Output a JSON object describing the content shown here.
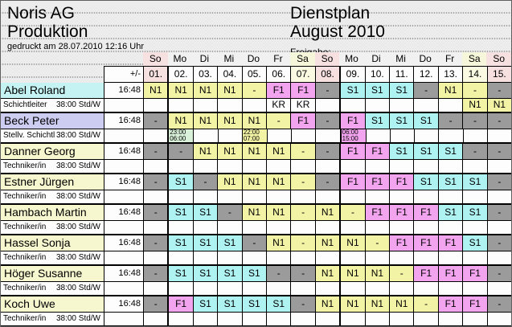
{
  "header": {
    "company_line1": "Noris AG",
    "company_line2": "Produktion",
    "printed": "gedruckt am 28.07.2010  12:16 Uhr",
    "plan_title": "Dienstplan",
    "plan_month": "August 2010",
    "release_label": "Freigabe:"
  },
  "legend": {
    "colors": {
      "n1": "#f3f3a6",
      "f1": "#f3a4ef",
      "s1": "#aff2f2",
      "off": "#9b9b9b",
      "kr": "#ffffff",
      "green": "#d9f1d9"
    }
  },
  "table": {
    "adjust_header": "+/-",
    "days": [
      {
        "weekday": "So",
        "date": "01.",
        "kind": "sun",
        "week_start": false
      },
      {
        "weekday": "Mo",
        "date": "02.",
        "kind": "wd",
        "week_start": true
      },
      {
        "weekday": "Di",
        "date": "03.",
        "kind": "wd",
        "week_start": false
      },
      {
        "weekday": "Mi",
        "date": "04.",
        "kind": "wd",
        "week_start": false
      },
      {
        "weekday": "Do",
        "date": "05.",
        "kind": "wd",
        "week_start": false
      },
      {
        "weekday": "Fr",
        "date": "06.",
        "kind": "wd",
        "week_start": false
      },
      {
        "weekday": "Sa",
        "date": "07.",
        "kind": "sat",
        "week_start": false
      },
      {
        "weekday": "So",
        "date": "08.",
        "kind": "sun",
        "week_start": false
      },
      {
        "weekday": "Mo",
        "date": "09.",
        "kind": "wd",
        "week_start": true
      },
      {
        "weekday": "Di",
        "date": "10.",
        "kind": "wd",
        "week_start": false
      },
      {
        "weekday": "Mi",
        "date": "11.",
        "kind": "wd",
        "week_start": false
      },
      {
        "weekday": "Do",
        "date": "12.",
        "kind": "wd",
        "week_start": false
      },
      {
        "weekday": "Fr",
        "date": "13.",
        "kind": "wd",
        "week_start": false
      },
      {
        "weekday": "Sa",
        "date": "14.",
        "kind": "sat",
        "week_start": false
      },
      {
        "weekday": "So",
        "date": "15.",
        "kind": "sun",
        "week_start": false
      }
    ],
    "employees": [
      {
        "name": "Abel Roland",
        "role": "Schichtleiter",
        "hours": "38:00 Std/W",
        "balance": "16:48",
        "name_bg": "#c5f3f3",
        "cells": [
          {
            "code": "N1",
            "bg": "n1"
          },
          {
            "code": "N1",
            "bg": "n1"
          },
          {
            "code": "N1",
            "bg": "n1"
          },
          {
            "code": "N1",
            "bg": "n1"
          },
          {
            "code": "-",
            "bg": "n1"
          },
          {
            "code": "F1",
            "bg": "f1"
          },
          {
            "code": "F1",
            "bg": "f1"
          },
          {
            "code": "-",
            "bg": "off"
          },
          {
            "code": "S1",
            "bg": "s1"
          },
          {
            "code": "S1",
            "bg": "s1"
          },
          {
            "code": "S1",
            "bg": "s1"
          },
          {
            "code": "-",
            "bg": "off"
          },
          {
            "code": "N1",
            "bg": "n1"
          },
          {
            "code": "-",
            "bg": "n1"
          },
          {
            "code": "-",
            "bg": "off"
          }
        ],
        "subs": [
          null,
          null,
          null,
          null,
          null,
          {
            "code": "KR",
            "bg": "kr"
          },
          {
            "code": "KR",
            "bg": "kr"
          },
          null,
          null,
          null,
          null,
          null,
          null,
          {
            "code": "N1",
            "bg": "n1"
          },
          {
            "code": "N1",
            "bg": "n1"
          }
        ]
      },
      {
        "name": "Beck Peter",
        "role": "Stellv. Schichtl",
        "hours": "38:00 Std/W",
        "balance": "16:48",
        "name_bg": "#cdccf1",
        "cells": [
          {
            "code": "-",
            "bg": "off"
          },
          {
            "code": "N1",
            "bg": "n1"
          },
          {
            "code": "N1",
            "bg": "n1"
          },
          {
            "code": "N1",
            "bg": "n1"
          },
          {
            "code": "N1",
            "bg": "n1"
          },
          {
            "code": "-",
            "bg": "n1"
          },
          {
            "code": "F1",
            "bg": "f1"
          },
          {
            "code": "-",
            "bg": "off"
          },
          {
            "code": "F1",
            "bg": "f1"
          },
          {
            "code": "S1",
            "bg": "s1"
          },
          {
            "code": "S1",
            "bg": "s1"
          },
          {
            "code": "S1",
            "bg": "s1"
          },
          {
            "code": "-",
            "bg": "off"
          },
          {
            "code": "-",
            "bg": "off"
          },
          {
            "code": "-",
            "bg": "off"
          }
        ],
        "subs": [
          null,
          {
            "code": "23:00\n06:00",
            "bg": "green",
            "small": true
          },
          null,
          null,
          {
            "code": "22:00\n07:00",
            "bg": "n1",
            "small": true
          },
          null,
          null,
          null,
          {
            "code": "06:00\n15:00",
            "bg": "f1",
            "small": true
          },
          null,
          null,
          null,
          null,
          null,
          null
        ]
      },
      {
        "name": "Danner Georg",
        "role": "Techniker/in",
        "hours": "38:00 Std/W",
        "balance": "16:48",
        "name_bg": "#f6f6cf",
        "cells": [
          {
            "code": "-",
            "bg": "off"
          },
          {
            "code": "-",
            "bg": "off"
          },
          {
            "code": "N1",
            "bg": "n1"
          },
          {
            "code": "N1",
            "bg": "n1"
          },
          {
            "code": "N1",
            "bg": "n1"
          },
          {
            "code": "N1",
            "bg": "n1"
          },
          {
            "code": "-",
            "bg": "n1"
          },
          {
            "code": "-",
            "bg": "off"
          },
          {
            "code": "F1",
            "bg": "f1"
          },
          {
            "code": "F1",
            "bg": "f1"
          },
          {
            "code": "S1",
            "bg": "s1"
          },
          {
            "code": "S1",
            "bg": "s1"
          },
          {
            "code": "S1",
            "bg": "s1"
          },
          {
            "code": "-",
            "bg": "off"
          },
          {
            "code": "-",
            "bg": "off"
          }
        ],
        "subs": [
          null,
          null,
          null,
          null,
          null,
          null,
          null,
          null,
          null,
          null,
          null,
          null,
          null,
          null,
          null
        ]
      },
      {
        "name": "Estner Jürgen",
        "role": "Techniker/in",
        "hours": "38:00 Std/W",
        "balance": "16:48",
        "name_bg": "#f6f6cf",
        "cells": [
          {
            "code": "-",
            "bg": "off"
          },
          {
            "code": "S1",
            "bg": "s1"
          },
          {
            "code": "-",
            "bg": "off"
          },
          {
            "code": "N1",
            "bg": "n1"
          },
          {
            "code": "N1",
            "bg": "n1"
          },
          {
            "code": "N1",
            "bg": "n1"
          },
          {
            "code": "-",
            "bg": "n1"
          },
          {
            "code": "-",
            "bg": "off"
          },
          {
            "code": "F1",
            "bg": "f1"
          },
          {
            "code": "F1",
            "bg": "f1"
          },
          {
            "code": "F1",
            "bg": "f1"
          },
          {
            "code": "S1",
            "bg": "s1"
          },
          {
            "code": "S1",
            "bg": "s1"
          },
          {
            "code": "S1",
            "bg": "s1"
          },
          {
            "code": "-",
            "bg": "off"
          }
        ],
        "subs": [
          null,
          null,
          null,
          null,
          null,
          null,
          null,
          null,
          null,
          null,
          null,
          null,
          null,
          null,
          null
        ]
      },
      {
        "name": "Hambach Martin",
        "role": "Techniker/in",
        "hours": "38:00 Std/W",
        "balance": "16:48",
        "name_bg": "#f6f6cf",
        "cells": [
          {
            "code": "-",
            "bg": "off"
          },
          {
            "code": "S1",
            "bg": "s1"
          },
          {
            "code": "S1",
            "bg": "s1"
          },
          {
            "code": "-",
            "bg": "off"
          },
          {
            "code": "N1",
            "bg": "n1"
          },
          {
            "code": "N1",
            "bg": "n1"
          },
          {
            "code": "-",
            "bg": "n1"
          },
          {
            "code": "N1",
            "bg": "n1"
          },
          {
            "code": "-",
            "bg": "n1"
          },
          {
            "code": "F1",
            "bg": "f1"
          },
          {
            "code": "F1",
            "bg": "f1"
          },
          {
            "code": "F1",
            "bg": "f1"
          },
          {
            "code": "S1",
            "bg": "s1"
          },
          {
            "code": "S1",
            "bg": "s1"
          },
          {
            "code": "-",
            "bg": "off"
          }
        ],
        "subs": [
          null,
          null,
          null,
          null,
          null,
          null,
          null,
          null,
          null,
          null,
          null,
          null,
          null,
          null,
          null
        ]
      },
      {
        "name": "Hassel Sonja",
        "role": "Techniker/in",
        "hours": "38:00 Std/W",
        "balance": "16:48",
        "name_bg": "#f6f6cf",
        "cells": [
          {
            "code": "-",
            "bg": "off"
          },
          {
            "code": "S1",
            "bg": "s1"
          },
          {
            "code": "S1",
            "bg": "s1"
          },
          {
            "code": "S1",
            "bg": "s1"
          },
          {
            "code": "-",
            "bg": "off"
          },
          {
            "code": "N1",
            "bg": "n1"
          },
          {
            "code": "-",
            "bg": "n1"
          },
          {
            "code": "N1",
            "bg": "n1"
          },
          {
            "code": "N1",
            "bg": "n1"
          },
          {
            "code": "-",
            "bg": "n1"
          },
          {
            "code": "F1",
            "bg": "f1"
          },
          {
            "code": "F1",
            "bg": "f1"
          },
          {
            "code": "F1",
            "bg": "f1"
          },
          {
            "code": "S1",
            "bg": "s1"
          },
          {
            "code": "-",
            "bg": "off"
          }
        ],
        "subs": [
          null,
          null,
          null,
          null,
          null,
          null,
          null,
          null,
          null,
          null,
          null,
          null,
          null,
          null,
          null
        ]
      },
      {
        "name": "Höger Susanne",
        "role": "Techniker/in",
        "hours": "38:00 Std/W",
        "balance": "16:48",
        "name_bg": "#f6f6cf",
        "cells": [
          {
            "code": "-",
            "bg": "off"
          },
          {
            "code": "S1",
            "bg": "s1"
          },
          {
            "code": "S1",
            "bg": "s1"
          },
          {
            "code": "S1",
            "bg": "s1"
          },
          {
            "code": "S1",
            "bg": "s1"
          },
          {
            "code": "-",
            "bg": "off"
          },
          {
            "code": "-",
            "bg": "off"
          },
          {
            "code": "N1",
            "bg": "n1"
          },
          {
            "code": "N1",
            "bg": "n1"
          },
          {
            "code": "N1",
            "bg": "n1"
          },
          {
            "code": "-",
            "bg": "n1"
          },
          {
            "code": "F1",
            "bg": "f1"
          },
          {
            "code": "F1",
            "bg": "f1"
          },
          {
            "code": "F1",
            "bg": "f1"
          },
          {
            "code": "-",
            "bg": "off"
          }
        ],
        "subs": [
          null,
          null,
          null,
          null,
          null,
          null,
          null,
          null,
          null,
          null,
          null,
          null,
          null,
          null,
          null
        ]
      },
      {
        "name": "Koch Uwe",
        "role": "Techniker/in",
        "hours": "38:00 Std/W",
        "balance": "16:48",
        "name_bg": "#f6f6cf",
        "cells": [
          {
            "code": "-",
            "bg": "off"
          },
          {
            "code": "F1",
            "bg": "f1"
          },
          {
            "code": "S1",
            "bg": "s1"
          },
          {
            "code": "S1",
            "bg": "s1"
          },
          {
            "code": "S1",
            "bg": "s1"
          },
          {
            "code": "S1",
            "bg": "s1"
          },
          {
            "code": "-",
            "bg": "off"
          },
          {
            "code": "N1",
            "bg": "n1"
          },
          {
            "code": "N1",
            "bg": "n1"
          },
          {
            "code": "N1",
            "bg": "n1"
          },
          {
            "code": "N1",
            "bg": "n1"
          },
          {
            "code": "-",
            "bg": "n1"
          },
          {
            "code": "F1",
            "bg": "f1"
          },
          {
            "code": "F1",
            "bg": "f1"
          },
          {
            "code": "-",
            "bg": "off"
          }
        ],
        "subs": [
          null,
          null,
          null,
          null,
          null,
          null,
          null,
          null,
          null,
          null,
          null,
          null,
          null,
          null,
          null
        ]
      }
    ]
  }
}
